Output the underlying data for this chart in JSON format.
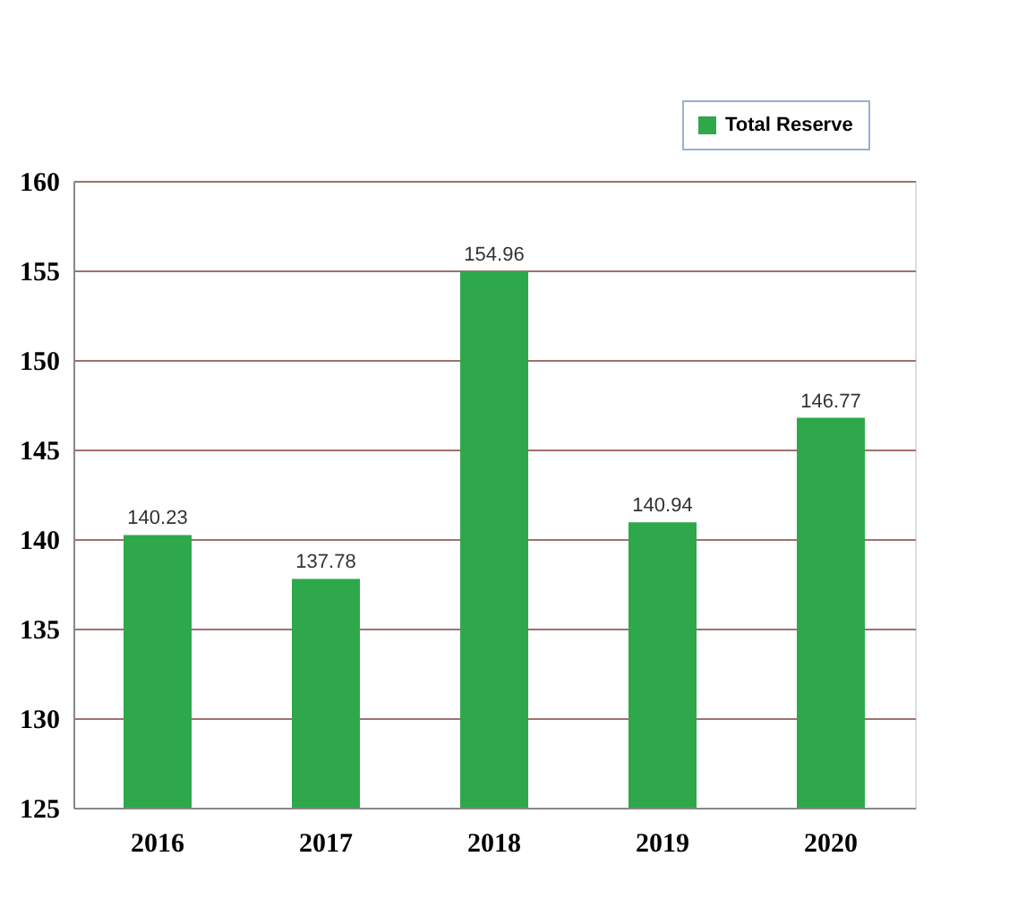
{
  "chart_data": {
    "type": "bar",
    "categories": [
      "2016",
      "2017",
      "2018",
      "2019",
      "2020"
    ],
    "series": [
      {
        "name": "Total Reserve",
        "color": "#2ea84a",
        "values": [
          140.23,
          137.78,
          154.96,
          140.94,
          146.77
        ]
      }
    ],
    "ylim": [
      125,
      160
    ],
    "yticks": [
      125,
      130,
      135,
      140,
      145,
      150,
      155,
      160
    ],
    "grid": "y",
    "legend": "top right",
    "data_labels": true
  }
}
